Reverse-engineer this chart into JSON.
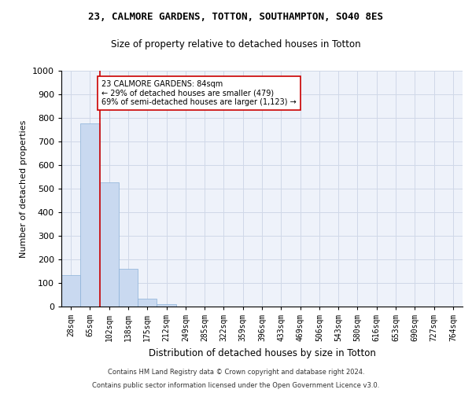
{
  "title1": "23, CALMORE GARDENS, TOTTON, SOUTHAMPTON, SO40 8ES",
  "title2": "Size of property relative to detached houses in Totton",
  "xlabel": "Distribution of detached houses by size in Totton",
  "ylabel": "Number of detached properties",
  "footer1": "Contains HM Land Registry data © Crown copyright and database right 2024.",
  "footer2": "Contains public sector information licensed under the Open Government Licence v3.0.",
  "categories": [
    "28sqm",
    "65sqm",
    "102sqm",
    "138sqm",
    "175sqm",
    "212sqm",
    "249sqm",
    "285sqm",
    "322sqm",
    "359sqm",
    "396sqm",
    "433sqm",
    "469sqm",
    "506sqm",
    "543sqm",
    "580sqm",
    "616sqm",
    "653sqm",
    "690sqm",
    "727sqm",
    "764sqm"
  ],
  "values": [
    133,
    778,
    527,
    160,
    35,
    10,
    0,
    0,
    0,
    0,
    0,
    0,
    0,
    0,
    0,
    0,
    0,
    0,
    0,
    0,
    0
  ],
  "bar_color": "#c9d9f0",
  "bar_edge_color": "#8ab0d8",
  "grid_color": "#d0d8e8",
  "background_color": "#eef2fa",
  "vline_x": 1.5,
  "vline_color": "#cc0000",
  "annotation_text": "23 CALMORE GARDENS: 84sqm\n← 29% of detached houses are smaller (479)\n69% of semi-detached houses are larger (1,123) →",
  "annotation_box_color": "#ffffff",
  "annotation_box_edge": "#cc0000",
  "ylim": [
    0,
    1000
  ],
  "yticks": [
    0,
    100,
    200,
    300,
    400,
    500,
    600,
    700,
    800,
    900,
    1000
  ],
  "title1_fontsize": 9,
  "title2_fontsize": 8.5,
  "xlabel_fontsize": 8.5,
  "ylabel_fontsize": 8,
  "footer_fontsize": 6,
  "annot_fontsize": 7,
  "tick_fontsize": 7
}
